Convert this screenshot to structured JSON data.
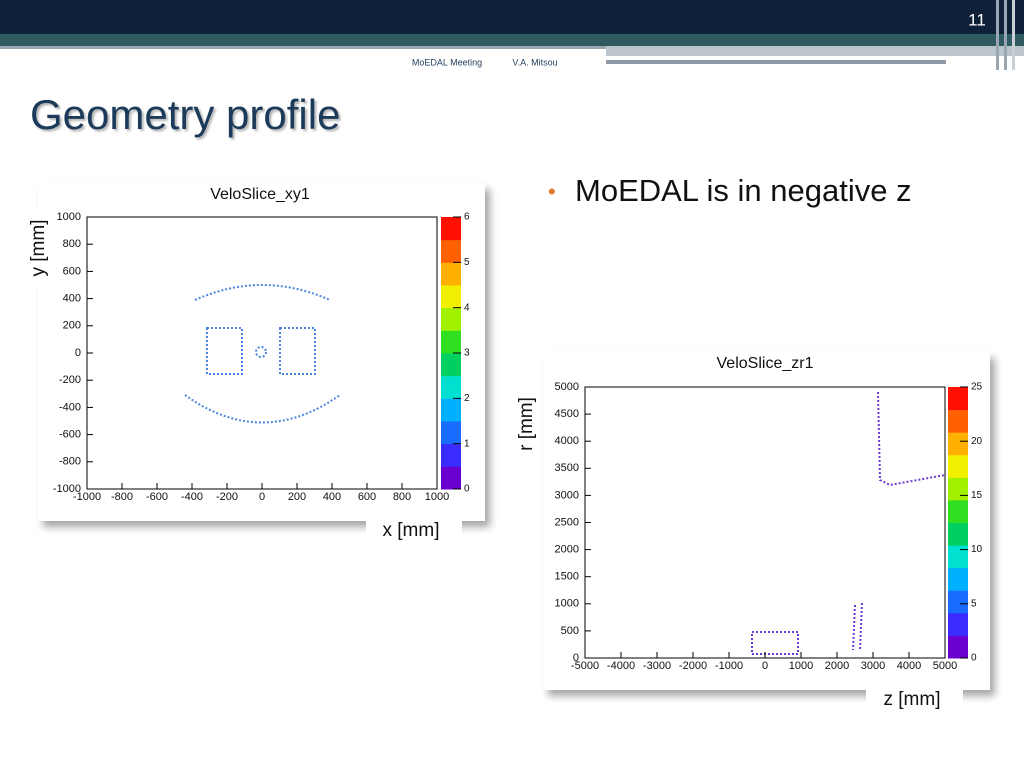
{
  "header": {
    "page_number": "11",
    "meeting": "MoEDAL Meeting",
    "author": "V.A. Mitsou"
  },
  "title": "Geometry profile",
  "bullets": [
    "MoEDAL is in negative z"
  ],
  "chart_data": [
    {
      "type": "histogram2d",
      "title": "VeloSlice_xy1",
      "x_label": "x [mm]",
      "y_label": "y [mm]",
      "xlim": [
        -1000,
        1000
      ],
      "xticks": [
        -1000,
        -800,
        -600,
        -400,
        -200,
        0,
        200,
        400,
        600,
        800,
        1000
      ],
      "ylim": [
        -1000,
        1000
      ],
      "yticks": [
        -1000,
        -800,
        -600,
        -400,
        -200,
        0,
        200,
        400,
        600,
        800,
        1000
      ],
      "zlim": [
        0,
        6
      ],
      "zticks": [
        0,
        1,
        2,
        3,
        4,
        5,
        6
      ],
      "color": "#3a78d8"
    },
    {
      "type": "histogram2d",
      "title": "VeloSlice_zr1",
      "x_label": "z [mm]",
      "y_label": "r [mm]",
      "xlim": [
        -5000,
        5000
      ],
      "xticks": [
        -5000,
        -4000,
        -3000,
        -2000,
        -1000,
        0,
        1000,
        2000,
        3000,
        4000,
        5000
      ],
      "ylim": [
        0,
        5000
      ],
      "yticks": [
        0,
        500,
        1000,
        1500,
        2000,
        2500,
        3000,
        3500,
        4000,
        4500,
        5000
      ],
      "zlim": [
        0,
        25
      ],
      "zticks": [
        0,
        5,
        10,
        15,
        20,
        25
      ],
      "color": "#6a3ad8"
    }
  ]
}
